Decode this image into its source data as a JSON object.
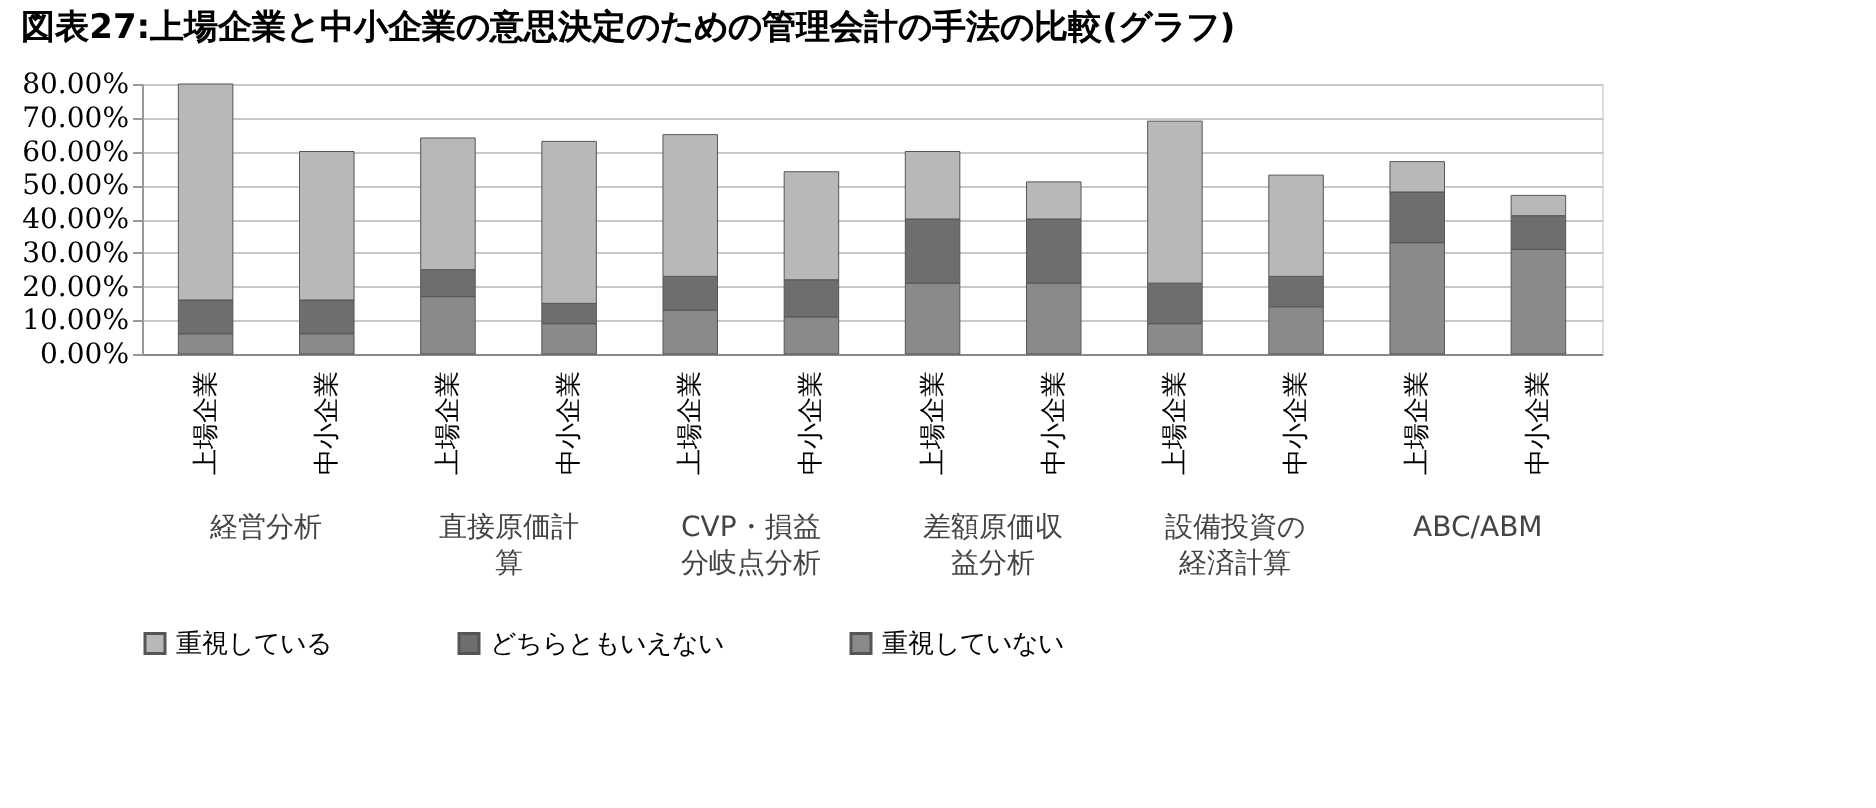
{
  "chart_data": {
    "type": "bar",
    "title": "図表27:上場企業と中小企業の意思決定のための管理会計の手法の比較(グラフ)",
    "categories": [
      "上場企業",
      "中小企業",
      "上場企業",
      "中小企業",
      "上場企業",
      "中小企業",
      "上場企業",
      "中小企業",
      "上場企業",
      "中小企業",
      "上場企業",
      "中小企業"
    ],
    "annotations": [
      "経営分析",
      "直接原価計算",
      "CVP・損益分岐点分析",
      "差額原価収益分析",
      "設備投資の経済計算",
      "ABC/ABM"
    ],
    "stacked": true,
    "series": [
      {
        "name": "重視していない",
        "color": "#8a8a8a",
        "values": [
          6,
          6,
          17,
          9,
          13,
          11,
          21,
          21,
          9,
          14,
          33,
          31
        ]
      },
      {
        "name": "どちらともいえない",
        "color": "#6e6e6e",
        "values": [
          10,
          10,
          8,
          6,
          10,
          11,
          19,
          19,
          12,
          9,
          15,
          10
        ]
      },
      {
        "name": "重視している",
        "color": "#b8b8b8",
        "values": [
          64,
          44,
          39,
          48,
          42,
          32,
          20,
          11,
          48,
          30,
          9,
          6
        ]
      }
    ],
    "ylim": [
      0,
      80
    ],
    "yticks": [
      {
        "value": 0,
        "label": "0.00%"
      },
      {
        "value": 10,
        "label": "10.00%"
      },
      {
        "value": 20,
        "label": "20.00%"
      },
      {
        "value": 30,
        "label": "30.00%"
      },
      {
        "value": 40,
        "label": "40.00%"
      },
      {
        "value": 50,
        "label": "50.00%"
      },
      {
        "value": 60,
        "label": "60.00%"
      },
      {
        "value": 70,
        "label": "70.00%"
      },
      {
        "value": 80,
        "label": "80.00%"
      }
    ],
    "grid": "y",
    "legend": "bottom"
  }
}
